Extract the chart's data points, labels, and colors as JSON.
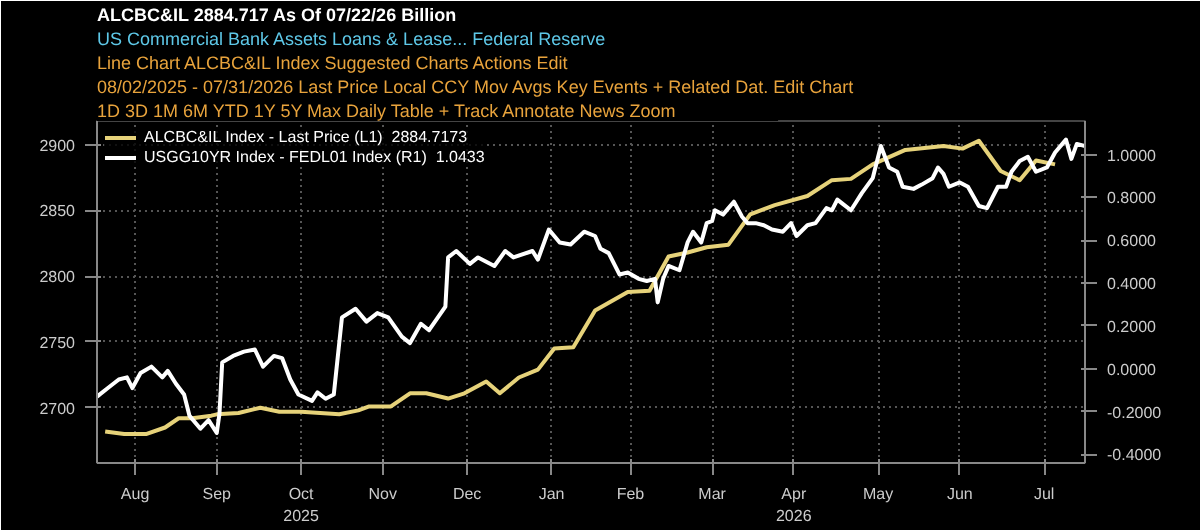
{
  "chart_data": {
    "type": "line",
    "title": "ALCBC&IL  2884.717  As Of 07/22/26 Billion",
    "subtitle": "US Commercial Bank Assets Loans & Lease... Federal Reserve",
    "annotations": [
      "Line Chart   ALCBC&IL Index   Suggested Charts   Actions   Edit",
      "08/02/2025 - 07/31/2026   Last Price   Local CCY   Mov Avgs   Key Events   + Related Dat.   Edit Chart",
      "1D  3D  1M  6M  YTD  1Y  5Y  Max  Daily  Table      + Track   Annotate   News   Zoom"
    ],
    "series": [
      {
        "name": "ALCBC&IL Index - Last Price (L1)  2884.7173",
        "color": "#e6d27a",
        "x": [
          "2025-08-05",
          "2025-08-12",
          "2025-08-20",
          "2025-08-27",
          "2025-09-01",
          "2025-09-06",
          "2025-09-13",
          "2025-09-15",
          "2025-09-23",
          "2025-10-01",
          "2025-10-08",
          "2025-10-16",
          "2025-10-23",
          "2025-10-30",
          "2025-11-06",
          "2025-11-10",
          "2025-11-18",
          "2025-11-25",
          "2025-12-01",
          "2025-12-09",
          "2025-12-15",
          "2025-12-23",
          "2025-12-28",
          "2026-01-04",
          "2026-01-11",
          "2026-01-17",
          "2026-01-24",
          "2026-02-01",
          "2026-02-13",
          "2026-02-21",
          "2026-02-28",
          "2026-03-07",
          "2026-03-14",
          "2026-03-22",
          "2026-03-30",
          "2026-04-08",
          "2026-04-20",
          "2026-04-29",
          "2026-05-06",
          "2026-05-14",
          "2026-05-26",
          "2026-06-09",
          "2026-06-16",
          "2026-06-22",
          "2026-06-30",
          "2026-07-07",
          "2026-07-13",
          "2026-07-20"
        ],
        "values": [
          2682,
          2680,
          2680,
          2685,
          2692,
          2692,
          2694,
          2695,
          2696,
          2700,
          2697,
          2697,
          2696,
          2695,
          2698,
          2701,
          2701,
          2711,
          2711,
          2707,
          2711,
          2720,
          2711,
          2723,
          2729,
          2745,
          2746,
          2774,
          2788,
          2789,
          2815,
          2818,
          2822,
          2824,
          2847,
          2854,
          2861,
          2873,
          2874,
          2885,
          2896,
          2899,
          2897,
          2903,
          2880,
          2873,
          2888,
          2885
        ]
      },
      {
        "name": "USGG10YR Index - FEDL01 Index (R1)  1.0433",
        "color": "#ffffff",
        "axis": "y2",
        "x": [
          "2025-08-02",
          "2025-08-06",
          "2025-08-10",
          "2025-08-13",
          "2025-08-15",
          "2025-08-18",
          "2025-08-22",
          "2025-08-26",
          "2025-08-28",
          "2025-08-31",
          "2025-09-03",
          "2025-09-05",
          "2025-09-09",
          "2025-09-12",
          "2025-09-15",
          "2025-09-16",
          "2025-09-17",
          "2025-09-21",
          "2025-09-25",
          "2025-09-29",
          "2025-10-02",
          "2025-10-06",
          "2025-10-09",
          "2025-10-12",
          "2025-10-15",
          "2025-10-20",
          "2025-10-22",
          "2025-10-25",
          "2025-10-28",
          "2025-10-31",
          "2025-11-05",
          "2025-11-09",
          "2025-11-13",
          "2025-11-17",
          "2025-11-22",
          "2025-11-25",
          "2025-11-29",
          "2025-12-02",
          "2025-12-08",
          "2025-12-09",
          "2025-12-12",
          "2025-12-17",
          "2025-12-20",
          "2025-12-26",
          "2025-12-30",
          "2026-01-02",
          "2026-01-09",
          "2026-01-11",
          "2026-01-15",
          "2026-01-19",
          "2026-01-23",
          "2026-01-28",
          "2026-02-01",
          "2026-02-03",
          "2026-02-06",
          "2026-02-10",
          "2026-02-13",
          "2026-02-17",
          "2026-02-20",
          "2026-02-23",
          "2026-02-24",
          "2026-02-26",
          "2026-02-28",
          "2026-03-04",
          "2026-03-07",
          "2026-03-09",
          "2026-03-12",
          "2026-03-14",
          "2026-03-16",
          "2026-03-17",
          "2026-03-20",
          "2026-03-22",
          "2026-03-24",
          "2026-03-27",
          "2026-03-29",
          "2026-04-01",
          "2026-04-04",
          "2026-04-07",
          "2026-04-11",
          "2026-04-14",
          "2026-04-16",
          "2026-04-20",
          "2026-04-23",
          "2026-04-27",
          "2026-04-29",
          "2026-05-01",
          "2026-05-03",
          "2026-05-06",
          "2026-05-08",
          "2026-05-10",
          "2026-05-14",
          "2026-05-17",
          "2026-05-20",
          "2026-05-23",
          "2026-05-25",
          "2026-05-29",
          "2026-06-01",
          "2026-06-05",
          "2026-06-07",
          "2026-06-09",
          "2026-06-11",
          "2026-06-15",
          "2026-06-18",
          "2026-06-22",
          "2026-06-25",
          "2026-06-29",
          "2026-07-02",
          "2026-07-04",
          "2026-07-07",
          "2026-07-10",
          "2026-07-13",
          "2026-07-17",
          "2026-07-20",
          "2026-07-24",
          "2026-07-26",
          "2026-07-28",
          "2026-07-31"
        ],
        "values": [
          -0.13,
          -0.09,
          -0.05,
          -0.04,
          -0.09,
          -0.02,
          0.01,
          -0.04,
          -0.01,
          -0.07,
          -0.12,
          -0.22,
          -0.28,
          -0.24,
          -0.3,
          -0.21,
          0.03,
          0.06,
          0.08,
          0.09,
          0.01,
          0.06,
          0.05,
          -0.05,
          -0.12,
          -0.15,
          -0.11,
          -0.14,
          -0.12,
          0.24,
          0.28,
          0.22,
          0.26,
          0.24,
          0.15,
          0.12,
          0.21,
          0.18,
          0.29,
          0.52,
          0.55,
          0.49,
          0.52,
          0.48,
          0.55,
          0.52,
          0.55,
          0.51,
          0.65,
          0.59,
          0.58,
          0.64,
          0.62,
          0.56,
          0.54,
          0.44,
          0.45,
          0.42,
          0.41,
          0.42,
          0.31,
          0.42,
          0.48,
          0.46,
          0.59,
          0.64,
          0.59,
          0.68,
          0.69,
          0.74,
          0.72,
          0.75,
          0.78,
          0.71,
          0.68,
          0.68,
          0.67,
          0.65,
          0.64,
          0.68,
          0.62,
          0.67,
          0.68,
          0.75,
          0.74,
          0.79,
          0.77,
          0.74,
          0.78,
          0.82,
          0.89,
          1.04,
          0.94,
          0.92,
          0.85,
          0.84,
          0.86,
          0.89,
          0.94,
          0.91,
          0.85,
          0.87,
          0.85,
          0.76,
          0.75,
          0.85,
          0.85,
          0.92,
          0.97,
          0.99,
          0.92,
          0.94,
          1.01,
          1.07,
          0.98,
          1.05,
          1.04
        ]
      }
    ],
    "ylim": [
      2658,
      2918
    ],
    "yticks": [
      2700,
      2750,
      2800,
      2850,
      2900
    ],
    "y2lim": [
      -0.44,
      1.157
    ],
    "y2ticks": [
      {
        "value": -0.4,
        "label": "-0.4000"
      },
      {
        "value": -0.2,
        "label": "-0.2000"
      },
      {
        "value": 0,
        "label": "0.0000"
      },
      {
        "value": 0.2,
        "label": "0.2000"
      },
      {
        "value": 0.4,
        "label": "0.4000"
      },
      {
        "value": 0.6,
        "label": "0.6000"
      },
      {
        "value": 0.8,
        "label": "0.8000"
      },
      {
        "value": 1.0,
        "label": "1.0000"
      }
    ],
    "xlim": [
      "2025-08-02",
      "2026-07-31"
    ],
    "xticks": [
      {
        "value": "2025-08-16",
        "label": "Aug"
      },
      {
        "value": "2025-09-15",
        "label": "Sep"
      },
      {
        "value": "2025-10-16",
        "label": "Oct\n2025"
      },
      {
        "value": "2025-11-15",
        "label": "Nov"
      },
      {
        "value": "2025-12-16",
        "label": "Dec"
      },
      {
        "value": "2026-01-16",
        "label": "Jan"
      },
      {
        "value": "2026-02-14",
        "label": "Feb"
      },
      {
        "value": "2026-03-16",
        "label": "Mar"
      },
      {
        "value": "2026-04-15",
        "label": "Apr\n2026"
      },
      {
        "value": "2026-05-16",
        "label": "May"
      },
      {
        "value": "2026-06-15",
        "label": "Jun"
      },
      {
        "value": "2026-07-16",
        "label": "Jul"
      }
    ],
    "grid": true,
    "legend": "top left",
    "line_style": "solid"
  }
}
